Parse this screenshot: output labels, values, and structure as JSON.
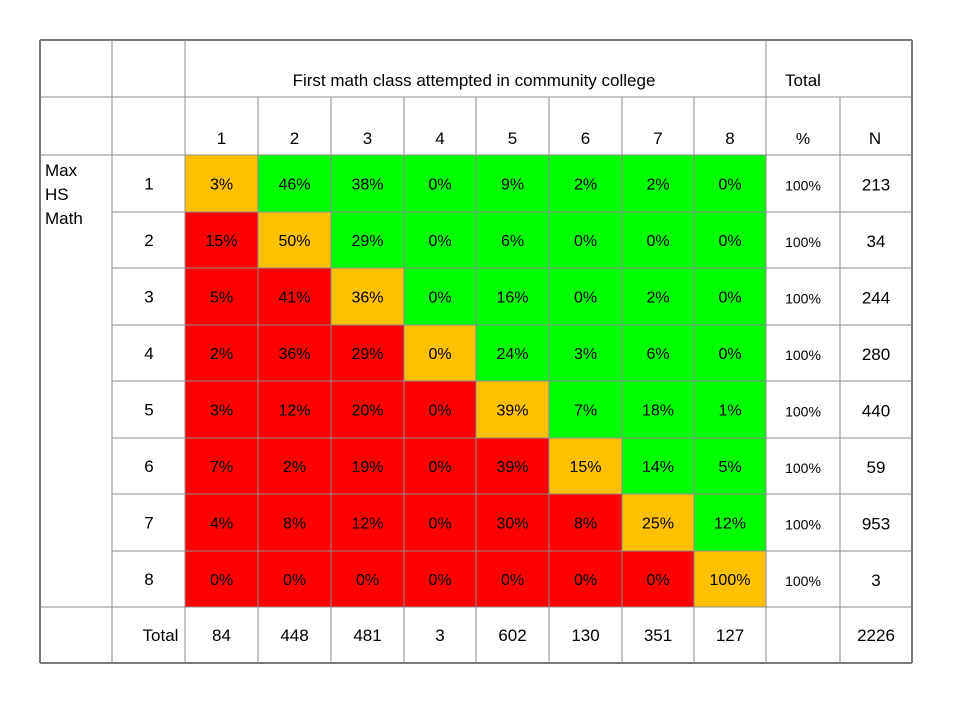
{
  "chart_data": {
    "type": "heatmap",
    "header_title": "First math class attempted in community college",
    "header_total": "Total",
    "row_label": [
      "Max",
      "HS",
      "Math"
    ],
    "column_labels": [
      "1",
      "2",
      "3",
      "4",
      "5",
      "6",
      "7",
      "8"
    ],
    "pct_label": "%",
    "n_label": "N",
    "rows": [
      {
        "label": "1",
        "values": [
          "3%",
          "46%",
          "38%",
          "0%",
          "9%",
          "2%",
          "2%",
          "0%"
        ],
        "pct": "100%",
        "n": "213"
      },
      {
        "label": "2",
        "values": [
          "15%",
          "50%",
          "29%",
          "0%",
          "6%",
          "0%",
          "0%",
          "0%"
        ],
        "pct": "100%",
        "n": "34"
      },
      {
        "label": "3",
        "values": [
          "5%",
          "41%",
          "36%",
          "0%",
          "16%",
          "0%",
          "2%",
          "0%"
        ],
        "pct": "100%",
        "n": "244"
      },
      {
        "label": "4",
        "values": [
          "2%",
          "36%",
          "29%",
          "0%",
          "24%",
          "3%",
          "6%",
          "0%"
        ],
        "pct": "100%",
        "n": "280"
      },
      {
        "label": "5",
        "values": [
          "3%",
          "12%",
          "20%",
          "0%",
          "39%",
          "7%",
          "18%",
          "1%"
        ],
        "pct": "100%",
        "n": "440"
      },
      {
        "label": "6",
        "values": [
          "7%",
          "2%",
          "19%",
          "0%",
          "39%",
          "15%",
          "14%",
          "5%"
        ],
        "pct": "100%",
        "n": "59"
      },
      {
        "label": "7",
        "values": [
          "4%",
          "8%",
          "12%",
          "0%",
          "30%",
          "8%",
          "25%",
          "12%"
        ],
        "pct": "100%",
        "n": "953"
      },
      {
        "label": "8",
        "values": [
          "0%",
          "0%",
          "0%",
          "0%",
          "0%",
          "0%",
          "0%",
          "100%"
        ],
        "pct": "100%",
        "n": "3"
      }
    ],
    "total_row": {
      "label": "Total",
      "values": [
        "84",
        "448",
        "481",
        "3",
        "602",
        "130",
        "351",
        "127"
      ],
      "n": "2226"
    },
    "colors": {
      "red": "#ff0000",
      "yellow": "#ffc000",
      "green": "#00ff00"
    },
    "cell_colors": [
      [
        "yellow",
        "green",
        "green",
        "green",
        "green",
        "green",
        "green",
        "green"
      ],
      [
        "red",
        "yellow",
        "green",
        "green",
        "green",
        "green",
        "green",
        "green"
      ],
      [
        "red",
        "red",
        "yellow",
        "green",
        "green",
        "green",
        "green",
        "green"
      ],
      [
        "red",
        "red",
        "red",
        "yellow",
        "green",
        "green",
        "green",
        "green"
      ],
      [
        "red",
        "red",
        "red",
        "red",
        "yellow",
        "green",
        "green",
        "green"
      ],
      [
        "red",
        "red",
        "red",
        "red",
        "red",
        "yellow",
        "green",
        "green"
      ],
      [
        "red",
        "red",
        "red",
        "red",
        "red",
        "red",
        "yellow",
        "green"
      ],
      [
        "red",
        "red",
        "red",
        "red",
        "red",
        "red",
        "red",
        "yellow"
      ]
    ]
  }
}
